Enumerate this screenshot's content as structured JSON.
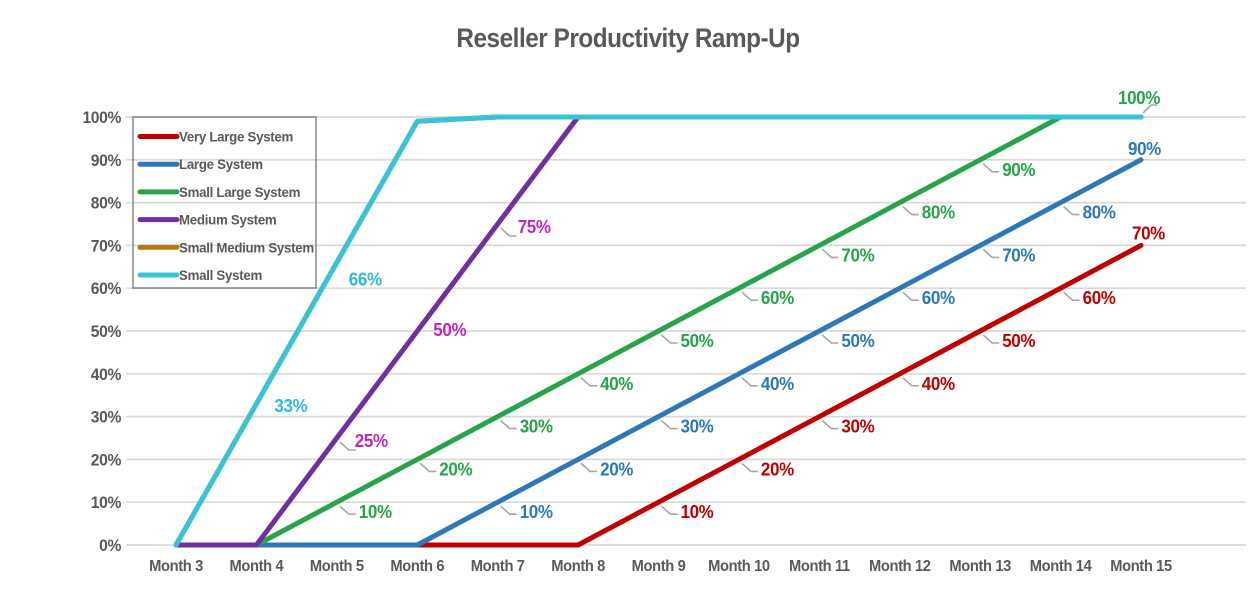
{
  "page": {
    "background": "#FFFFFF"
  },
  "chart_data": {
    "type": "line",
    "title": "Reseller Productivity Ramp-Up",
    "title_color": "#595959",
    "axis_text_color": "#595959",
    "leader_line_color": "#A6A6A6",
    "grid": {
      "horizontal": true,
      "vertical": false,
      "color": "#D9D9D9"
    },
    "x_categories": [
      "Month 3",
      "Month 4",
      "Month 5",
      "Month 6",
      "Month 7",
      "Month 8",
      "Month 9",
      "Month 10",
      "Month 11",
      "Month 12",
      "Month 13",
      "Month 14",
      "Month 15"
    ],
    "y_axis": {
      "min": 0,
      "max": 100,
      "tick_step": 10,
      "tick_labels": [
        "0%",
        "10%",
        "20%",
        "30%",
        "40%",
        "50%",
        "60%",
        "70%",
        "80%",
        "90%",
        "100%"
      ]
    },
    "legend": {
      "position": "top-left-inside",
      "border_color": "#808080",
      "entries": [
        "Very Large System",
        "Large System",
        "Small Large System",
        "Medium System",
        "Small Medium System",
        "Small System"
      ]
    },
    "series": [
      {
        "name": "Very Large System",
        "color": "#C00000",
        "label_color": "#C00000",
        "points": [
          [
            6,
            0
          ],
          [
            7,
            0
          ],
          [
            8,
            0
          ],
          [
            9,
            10
          ],
          [
            10,
            20
          ],
          [
            11,
            30
          ],
          [
            12,
            40
          ],
          [
            13,
            50
          ],
          [
            14,
            60
          ],
          [
            15,
            70
          ]
        ],
        "point_labels": [
          {
            "month": 9,
            "value": 10,
            "text": "10%"
          },
          {
            "month": 10,
            "value": 20,
            "text": "20%"
          },
          {
            "month": 11,
            "value": 30,
            "text": "30%"
          },
          {
            "month": 12,
            "value": 40,
            "text": "40%"
          },
          {
            "month": 13,
            "value": 50,
            "text": "50%"
          },
          {
            "month": 14,
            "value": 60,
            "text": "60%"
          },
          {
            "month": 15,
            "value": 70,
            "text": "70%",
            "dx": -9,
            "dy": -6,
            "leader": false
          }
        ]
      },
      {
        "name": "Large System",
        "color": "#2E78B8",
        "label_color": "#2E78B8",
        "points": [
          [
            4,
            0
          ],
          [
            5,
            0
          ],
          [
            6,
            0
          ],
          [
            7,
            10
          ],
          [
            8,
            20
          ],
          [
            9,
            30
          ],
          [
            10,
            40
          ],
          [
            11,
            50
          ],
          [
            12,
            60
          ],
          [
            13,
            70
          ],
          [
            14,
            80
          ],
          [
            15,
            90
          ]
        ],
        "point_labels": [
          {
            "month": 7,
            "value": 10,
            "text": "10%"
          },
          {
            "month": 8,
            "value": 20,
            "text": "20%"
          },
          {
            "month": 9,
            "value": 30,
            "text": "30%"
          },
          {
            "month": 10,
            "value": 40,
            "text": "40%"
          },
          {
            "month": 11,
            "value": 50,
            "text": "50%"
          },
          {
            "month": 12,
            "value": 60,
            "text": "60%"
          },
          {
            "month": 13,
            "value": 70,
            "text": "70%"
          },
          {
            "month": 14,
            "value": 80,
            "text": "80%"
          },
          {
            "month": 15,
            "value": 90,
            "text": "90%",
            "dx": -13,
            "dy": -5,
            "leader": false
          }
        ]
      },
      {
        "name": "Small Large System",
        "color": "#27A348",
        "label_color": "#27A348",
        "points": [
          [
            4,
            0
          ],
          [
            5,
            10
          ],
          [
            6,
            20
          ],
          [
            7,
            30
          ],
          [
            8,
            40
          ],
          [
            9,
            50
          ],
          [
            10,
            60
          ],
          [
            11,
            70
          ],
          [
            12,
            80
          ],
          [
            13,
            90
          ],
          [
            14,
            100
          ],
          [
            15,
            100
          ]
        ],
        "point_labels": [
          {
            "month": 5,
            "value": 10,
            "text": "10%"
          },
          {
            "month": 6,
            "value": 20,
            "text": "20%"
          },
          {
            "month": 7,
            "value": 30,
            "text": "30%"
          },
          {
            "month": 8,
            "value": 40,
            "text": "40%"
          },
          {
            "month": 9,
            "value": 50,
            "text": "50%"
          },
          {
            "month": 10,
            "value": 60,
            "text": "60%"
          },
          {
            "month": 11,
            "value": 70,
            "text": "70%"
          },
          {
            "month": 12,
            "value": 80,
            "text": "80%"
          },
          {
            "month": 13,
            "value": 90,
            "text": "90%"
          },
          {
            "month": 15,
            "value": 100,
            "text": "100%",
            "dx": -23,
            "dy": -13,
            "leader": true
          }
        ]
      },
      {
        "name": "Medium System",
        "color": "#7030A0",
        "label_color": "#BC29BC",
        "points": [
          [
            3,
            0
          ],
          [
            4,
            0
          ],
          [
            5,
            25
          ],
          [
            6,
            50
          ],
          [
            7,
            75
          ],
          [
            8,
            100
          ],
          [
            15,
            100
          ]
        ],
        "point_labels": [
          {
            "month": 5,
            "value": 25,
            "text": "25%",
            "dx": 18,
            "dy": 9
          },
          {
            "month": 6,
            "value": 50,
            "text": "50%",
            "dx": 16,
            "dy": 5,
            "leader": false
          },
          {
            "month": 7,
            "value": 75,
            "text": "75%",
            "dx": 20,
            "dy": 9
          }
        ]
      },
      {
        "name": "Small Medium System",
        "color": "#B5790D",
        "label_color": "#B5790D",
        "visible": false,
        "note": "line not visible in chart - completely overlapped by Small System line",
        "points": [
          [
            3,
            0
          ],
          [
            4,
            33
          ],
          [
            5,
            66
          ],
          [
            6,
            99
          ],
          [
            7,
            100
          ],
          [
            15,
            100
          ]
        ],
        "point_labels": []
      },
      {
        "name": "Small System",
        "color": "#36C5D8",
        "label_color": "#2FB9E2",
        "points": [
          [
            3,
            0
          ],
          [
            4,
            33
          ],
          [
            5,
            66
          ],
          [
            6,
            99
          ],
          [
            7,
            100
          ],
          [
            15,
            100
          ]
        ],
        "point_labels": [
          {
            "month": 4,
            "value": 33,
            "text": "33%",
            "dx": 18,
            "dy": 8,
            "leader": false
          },
          {
            "month": 5,
            "value": 66,
            "text": "66%",
            "dx": 12,
            "dy": 23,
            "leader": false
          }
        ]
      }
    ]
  }
}
